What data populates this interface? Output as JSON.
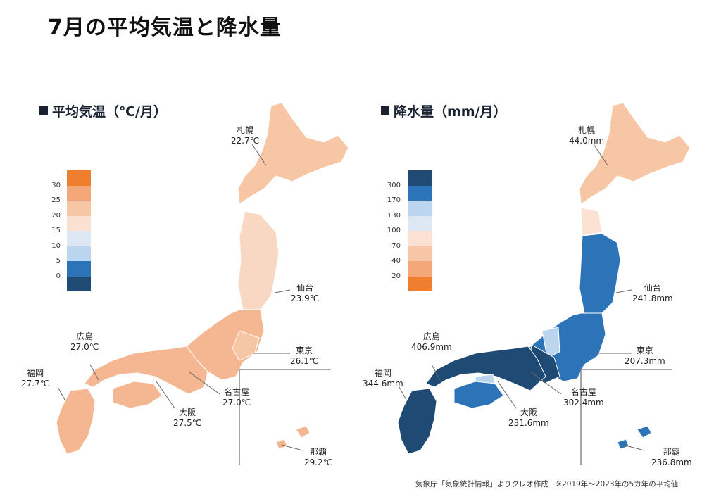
{
  "title": "7月の平均気温と降水量",
  "left": {
    "section_title": "平均気温（℃/月）",
    "legend_colors": [
      "#ef7f2f",
      "#f4a87a",
      "#f7c6a4",
      "#fbe1d1",
      "#dde8f4",
      "#bcd5ee",
      "#2c73b8",
      "#1f4a74"
    ],
    "legend_ticks": [
      "30",
      "25",
      "20",
      "15",
      "10",
      "5",
      "0"
    ],
    "cities": [
      {
        "name": "札幌",
        "value": "22.7℃"
      },
      {
        "name": "仙台",
        "value": "23.9℃"
      },
      {
        "name": "東京",
        "value": "26.1℃"
      },
      {
        "name": "名古屋",
        "value": "27.0℃"
      },
      {
        "name": "大阪",
        "value": "27.5℃"
      },
      {
        "name": "広島",
        "value": "27.0℃"
      },
      {
        "name": "福岡",
        "value": "27.7℃"
      },
      {
        "name": "那覇",
        "value": "29.2℃"
      }
    ]
  },
  "right": {
    "section_title": "降水量（mm/月）",
    "legend_colors": [
      "#1f4a74",
      "#2c73b8",
      "#bcd5ee",
      "#dde8f4",
      "#fbe1d1",
      "#f7c6a4",
      "#f4a87a",
      "#ef7f2f"
    ],
    "legend_ticks": [
      "300",
      "170",
      "130",
      "100",
      "70",
      "40",
      "20"
    ],
    "cities": [
      {
        "name": "札幌",
        "value": "44.0mm"
      },
      {
        "name": "仙台",
        "value": "241.8mm"
      },
      {
        "name": "東京",
        "value": "207.3mm"
      },
      {
        "name": "名古屋",
        "value": "302.4mm"
      },
      {
        "name": "大阪",
        "value": "231.6mm"
      },
      {
        "name": "広島",
        "value": "406.9mm"
      },
      {
        "name": "福岡",
        "value": "344.6mm"
      },
      {
        "name": "那覇",
        "value": "236.8mm"
      }
    ]
  },
  "footnote": "気象庁「気象統計情報」よりクレオ作成　※2019年～2023年の5カ年の平均値"
}
